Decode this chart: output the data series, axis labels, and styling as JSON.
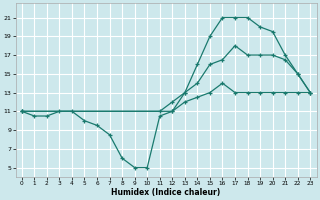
{
  "xlabel": "Humidex (Indice chaleur)",
  "bg_color": "#cde8ec",
  "grid_color": "#ffffff",
  "line_color": "#1a7a6e",
  "xlim": [
    -0.5,
    23.5
  ],
  "ylim": [
    4,
    22.5
  ],
  "yticks": [
    5,
    7,
    9,
    11,
    13,
    15,
    17,
    19,
    21
  ],
  "xticks": [
    0,
    1,
    2,
    3,
    4,
    5,
    6,
    7,
    8,
    9,
    10,
    11,
    12,
    13,
    14,
    15,
    16,
    17,
    18,
    19,
    20,
    21,
    22,
    23
  ],
  "line1_x": [
    0,
    1,
    2,
    3,
    4,
    5,
    6,
    7,
    8,
    9,
    10,
    11,
    12,
    13,
    14,
    15,
    16,
    17,
    18,
    19,
    20,
    21,
    22,
    23
  ],
  "line1_y": [
    11,
    10.5,
    10.5,
    11,
    11,
    10,
    9.5,
    8.5,
    6,
    5,
    5,
    10.5,
    11,
    13,
    16,
    19,
    21,
    21,
    21,
    20,
    19.5,
    17,
    15,
    13
  ],
  "line2_x": [
    0,
    12,
    13,
    14,
    15,
    16,
    17,
    18,
    19,
    20,
    21,
    22,
    23
  ],
  "line2_y": [
    11,
    11,
    12,
    12.5,
    13,
    14,
    13,
    13,
    13,
    13,
    13,
    13,
    13
  ],
  "line3_x": [
    0,
    11,
    12,
    13,
    14,
    15,
    16,
    17,
    18,
    19,
    20,
    21,
    22,
    23
  ],
  "line3_y": [
    11,
    11,
    12,
    13,
    14,
    16,
    16.5,
    18,
    17,
    17,
    17,
    16.5,
    15,
    13
  ]
}
